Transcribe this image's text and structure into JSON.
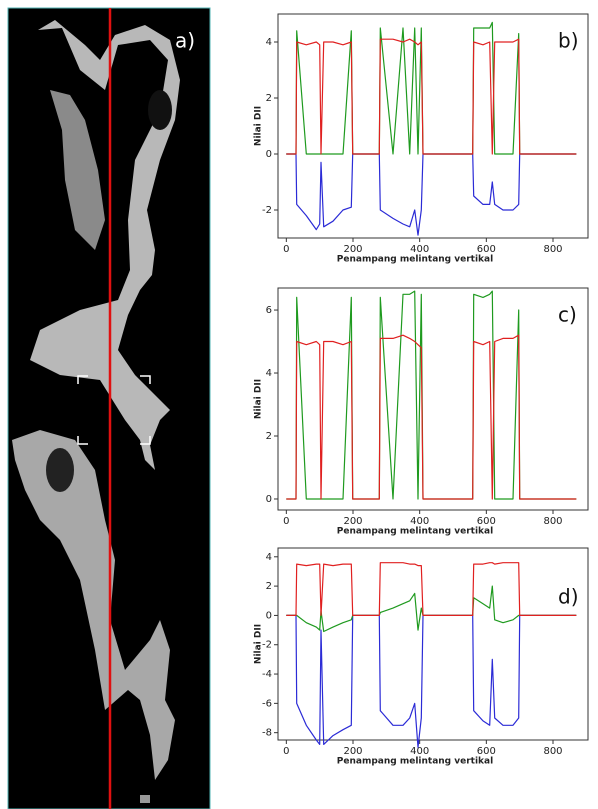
{
  "image_panel": {
    "label": "a)"
  },
  "chart_data": [
    {
      "type": "line",
      "annotation": "b)",
      "ylabel": "Nilai DII",
      "xlabel": "Penampang melintang vertikal",
      "xlim": [
        -25,
        905
      ],
      "xticks": [
        0,
        200,
        400,
        600,
        800
      ],
      "ylim": [
        -3,
        5
      ],
      "yticks": [
        -2,
        0,
        2,
        4
      ],
      "x": [
        0,
        29,
        31,
        60,
        90,
        100,
        104,
        112,
        140,
        170,
        195,
        199,
        240,
        279,
        282,
        320,
        350,
        370,
        385,
        395,
        405,
        410,
        480,
        559,
        562,
        590,
        610,
        618,
        625,
        650,
        680,
        697,
        700,
        870
      ],
      "series": [
        {
          "color": "#2b2bd6",
          "values": [
            0,
            0,
            -1.8,
            -2.2,
            -2.7,
            -2.5,
            -0.3,
            -2.6,
            -2.4,
            -2.0,
            -1.9,
            0,
            0,
            0,
            -2.0,
            -2.3,
            -2.5,
            -2.6,
            -2.0,
            -2.9,
            -2.0,
            0,
            0,
            0,
            -1.5,
            -1.8,
            -1.8,
            -1.0,
            -1.8,
            -2.0,
            -2.0,
            -1.8,
            0,
            0
          ]
        },
        {
          "color": "#1f9a1f",
          "values": [
            0,
            0,
            4.4,
            0,
            0,
            0,
            0,
            0,
            0,
            0,
            4.4,
            0,
            0,
            0,
            4.5,
            0,
            4.5,
            0,
            4.5,
            0,
            4.5,
            0,
            0,
            0,
            4.5,
            4.5,
            4.5,
            4.7,
            0,
            0,
            0,
            4.3,
            0,
            0
          ]
        },
        {
          "color": "#e02020",
          "values": [
            0,
            0,
            4,
            3.9,
            4.0,
            3.9,
            0,
            4,
            4,
            3.9,
            4,
            0,
            0,
            0,
            4.1,
            4.1,
            4,
            4.1,
            4,
            3.9,
            4,
            0,
            0,
            0,
            4,
            3.9,
            4,
            0,
            4,
            4,
            4,
            4.1,
            0,
            0
          ]
        }
      ]
    },
    {
      "type": "line",
      "annotation": "c)",
      "ylabel": "Nilai DII",
      "xlabel": "Penampang melintang vertikal",
      "xlim": [
        -25,
        905
      ],
      "xticks": [
        0,
        200,
        400,
        600,
        800
      ],
      "ylim": [
        -0.35,
        6.7
      ],
      "yticks": [
        0,
        2,
        4,
        6
      ],
      "x": [
        0,
        29,
        31,
        60,
        90,
        100,
        104,
        112,
        140,
        170,
        195,
        199,
        240,
        279,
        282,
        320,
        350,
        370,
        385,
        395,
        405,
        410,
        480,
        559,
        562,
        590,
        610,
        618,
        625,
        650,
        680,
        697,
        700,
        870
      ],
      "series": [
        {
          "color": "#1f9a1f",
          "values": [
            0,
            0,
            6.4,
            0,
            0,
            0,
            0,
            0,
            0,
            0,
            6.4,
            0,
            0,
            0,
            6.4,
            0,
            6.5,
            6.5,
            6.6,
            0,
            6.5,
            0,
            0,
            0,
            6.5,
            6.4,
            6.5,
            6.6,
            0,
            0,
            0,
            6.0,
            0,
            0
          ]
        },
        {
          "color": "#e02020",
          "values": [
            0,
            0,
            5,
            4.9,
            5,
            4.9,
            0,
            5,
            5,
            4.9,
            5,
            0,
            0,
            0,
            5.1,
            5.1,
            5.2,
            5.1,
            5,
            4.9,
            4.8,
            0,
            0,
            0,
            5,
            4.9,
            5,
            0,
            5,
            5.1,
            5.1,
            5.2,
            0,
            0
          ]
        }
      ]
    },
    {
      "type": "line",
      "annotation": "d)",
      "ylabel": "Nilai DII",
      "xlabel": "Penampang melintang vertikal",
      "xlim": [
        -25,
        905
      ],
      "xticks": [
        0,
        200,
        400,
        600,
        800
      ],
      "ylim": [
        -8.5,
        4.6
      ],
      "yticks": [
        -8,
        -6,
        -4,
        -2,
        0,
        2,
        4
      ],
      "x": [
        0,
        29,
        31,
        60,
        90,
        100,
        104,
        112,
        140,
        170,
        195,
        199,
        240,
        279,
        282,
        320,
        350,
        370,
        385,
        395,
        405,
        410,
        480,
        559,
        562,
        590,
        610,
        618,
        625,
        650,
        680,
        697,
        700,
        870
      ],
      "series": [
        {
          "color": "#2b2bd6",
          "values": [
            0,
            0,
            -6.0,
            -7.5,
            -8.5,
            -8.8,
            -1.0,
            -8.8,
            -8.2,
            -7.8,
            -7.5,
            0,
            0,
            0,
            -6.5,
            -7.5,
            -7.5,
            -7.0,
            -6.0,
            -9.0,
            -7.0,
            0,
            0,
            0,
            -6.5,
            -7.2,
            -7.5,
            -3.0,
            -7.0,
            -7.5,
            -7.5,
            -7.0,
            0,
            0
          ]
        },
        {
          "color": "#1f9a1f",
          "values": [
            0,
            0,
            0,
            -0.5,
            -0.8,
            -1.0,
            0.3,
            -1.1,
            -0.8,
            -0.5,
            -0.3,
            0,
            0,
            0,
            0.2,
            0.5,
            0.8,
            1.0,
            1.5,
            -1.0,
            0.5,
            0,
            0,
            0,
            1.2,
            0.8,
            0.5,
            2.0,
            -0.3,
            -0.5,
            -0.3,
            0,
            0,
            0
          ]
        },
        {
          "color": "#e02020",
          "values": [
            0,
            0,
            3.5,
            3.4,
            3.5,
            3.5,
            0,
            3.5,
            3.4,
            3.5,
            3.5,
            0,
            0,
            0,
            3.6,
            3.6,
            3.6,
            3.5,
            3.5,
            3.4,
            3.4,
            0,
            0,
            0,
            3.5,
            3.5,
            3.6,
            3.6,
            3.5,
            3.6,
            3.6,
            3.6,
            0,
            0
          ]
        }
      ]
    }
  ]
}
